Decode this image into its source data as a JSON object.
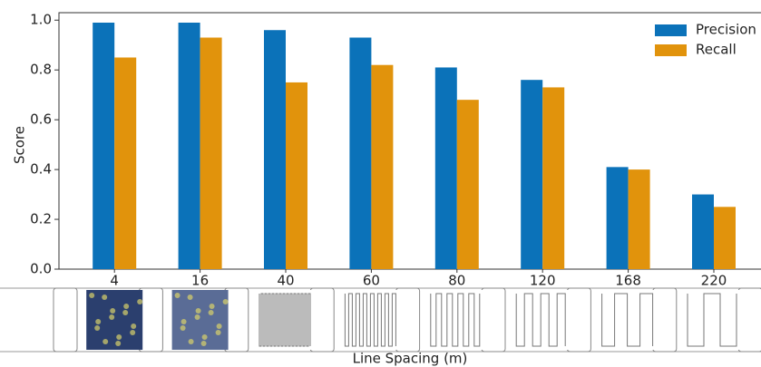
{
  "chart_data": {
    "type": "bar",
    "x_label": "Line Spacing (m)",
    "y_label": "Score",
    "categories": [
      "4",
      "16",
      "40",
      "60",
      "80",
      "120",
      "168",
      "220"
    ],
    "series": [
      {
        "name": "Precision",
        "color": "#0b72b9",
        "values": [
          0.99,
          0.99,
          0.96,
          0.93,
          0.81,
          0.76,
          0.41,
          0.3
        ]
      },
      {
        "name": "Recall",
        "color": "#e1930c",
        "values": [
          0.85,
          0.93,
          0.75,
          0.82,
          0.68,
          0.73,
          0.4,
          0.25
        ]
      }
    ],
    "ylim": [
      0,
      1.03
    ],
    "yticks": [
      {
        "value": 0,
        "label": "0.0"
      },
      0.2,
      0.4,
      0.6,
      0.8,
      {
        "value": 1,
        "label": "1.0"
      }
    ],
    "legend": "upper right"
  }
}
